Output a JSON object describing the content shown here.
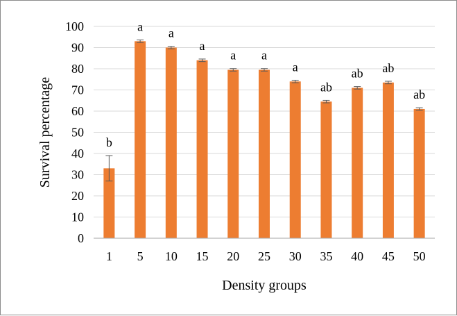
{
  "chart_data": {
    "type": "bar",
    "title": "",
    "xlabel": "Density groups",
    "ylabel": "Survival percentage",
    "categories": [
      "1",
      "5",
      "10",
      "15",
      "20",
      "25",
      "30",
      "35",
      "40",
      "45",
      "50"
    ],
    "values": [
      33,
      93,
      90,
      84,
      79.5,
      79.5,
      74,
      64.5,
      71,
      73.5,
      61
    ],
    "errors": [
      6,
      0.6,
      0.6,
      0.6,
      0.6,
      0.6,
      0.6,
      0.6,
      0.6,
      0.6,
      0.6
    ],
    "labels": [
      "b",
      "a",
      "a",
      "a",
      "a",
      "a",
      "a",
      "ab",
      "ab",
      "ab",
      "ab"
    ],
    "ylim": [
      0,
      100
    ],
    "yticks": [
      0,
      10,
      20,
      30,
      40,
      50,
      60,
      70,
      80,
      90,
      100
    ],
    "grid": true,
    "legend": "none",
    "colors": {
      "bar": "#ED7D31",
      "grid": "#d9d9d9",
      "axis": "#a6a6a6",
      "error_bar": "#595959"
    }
  }
}
